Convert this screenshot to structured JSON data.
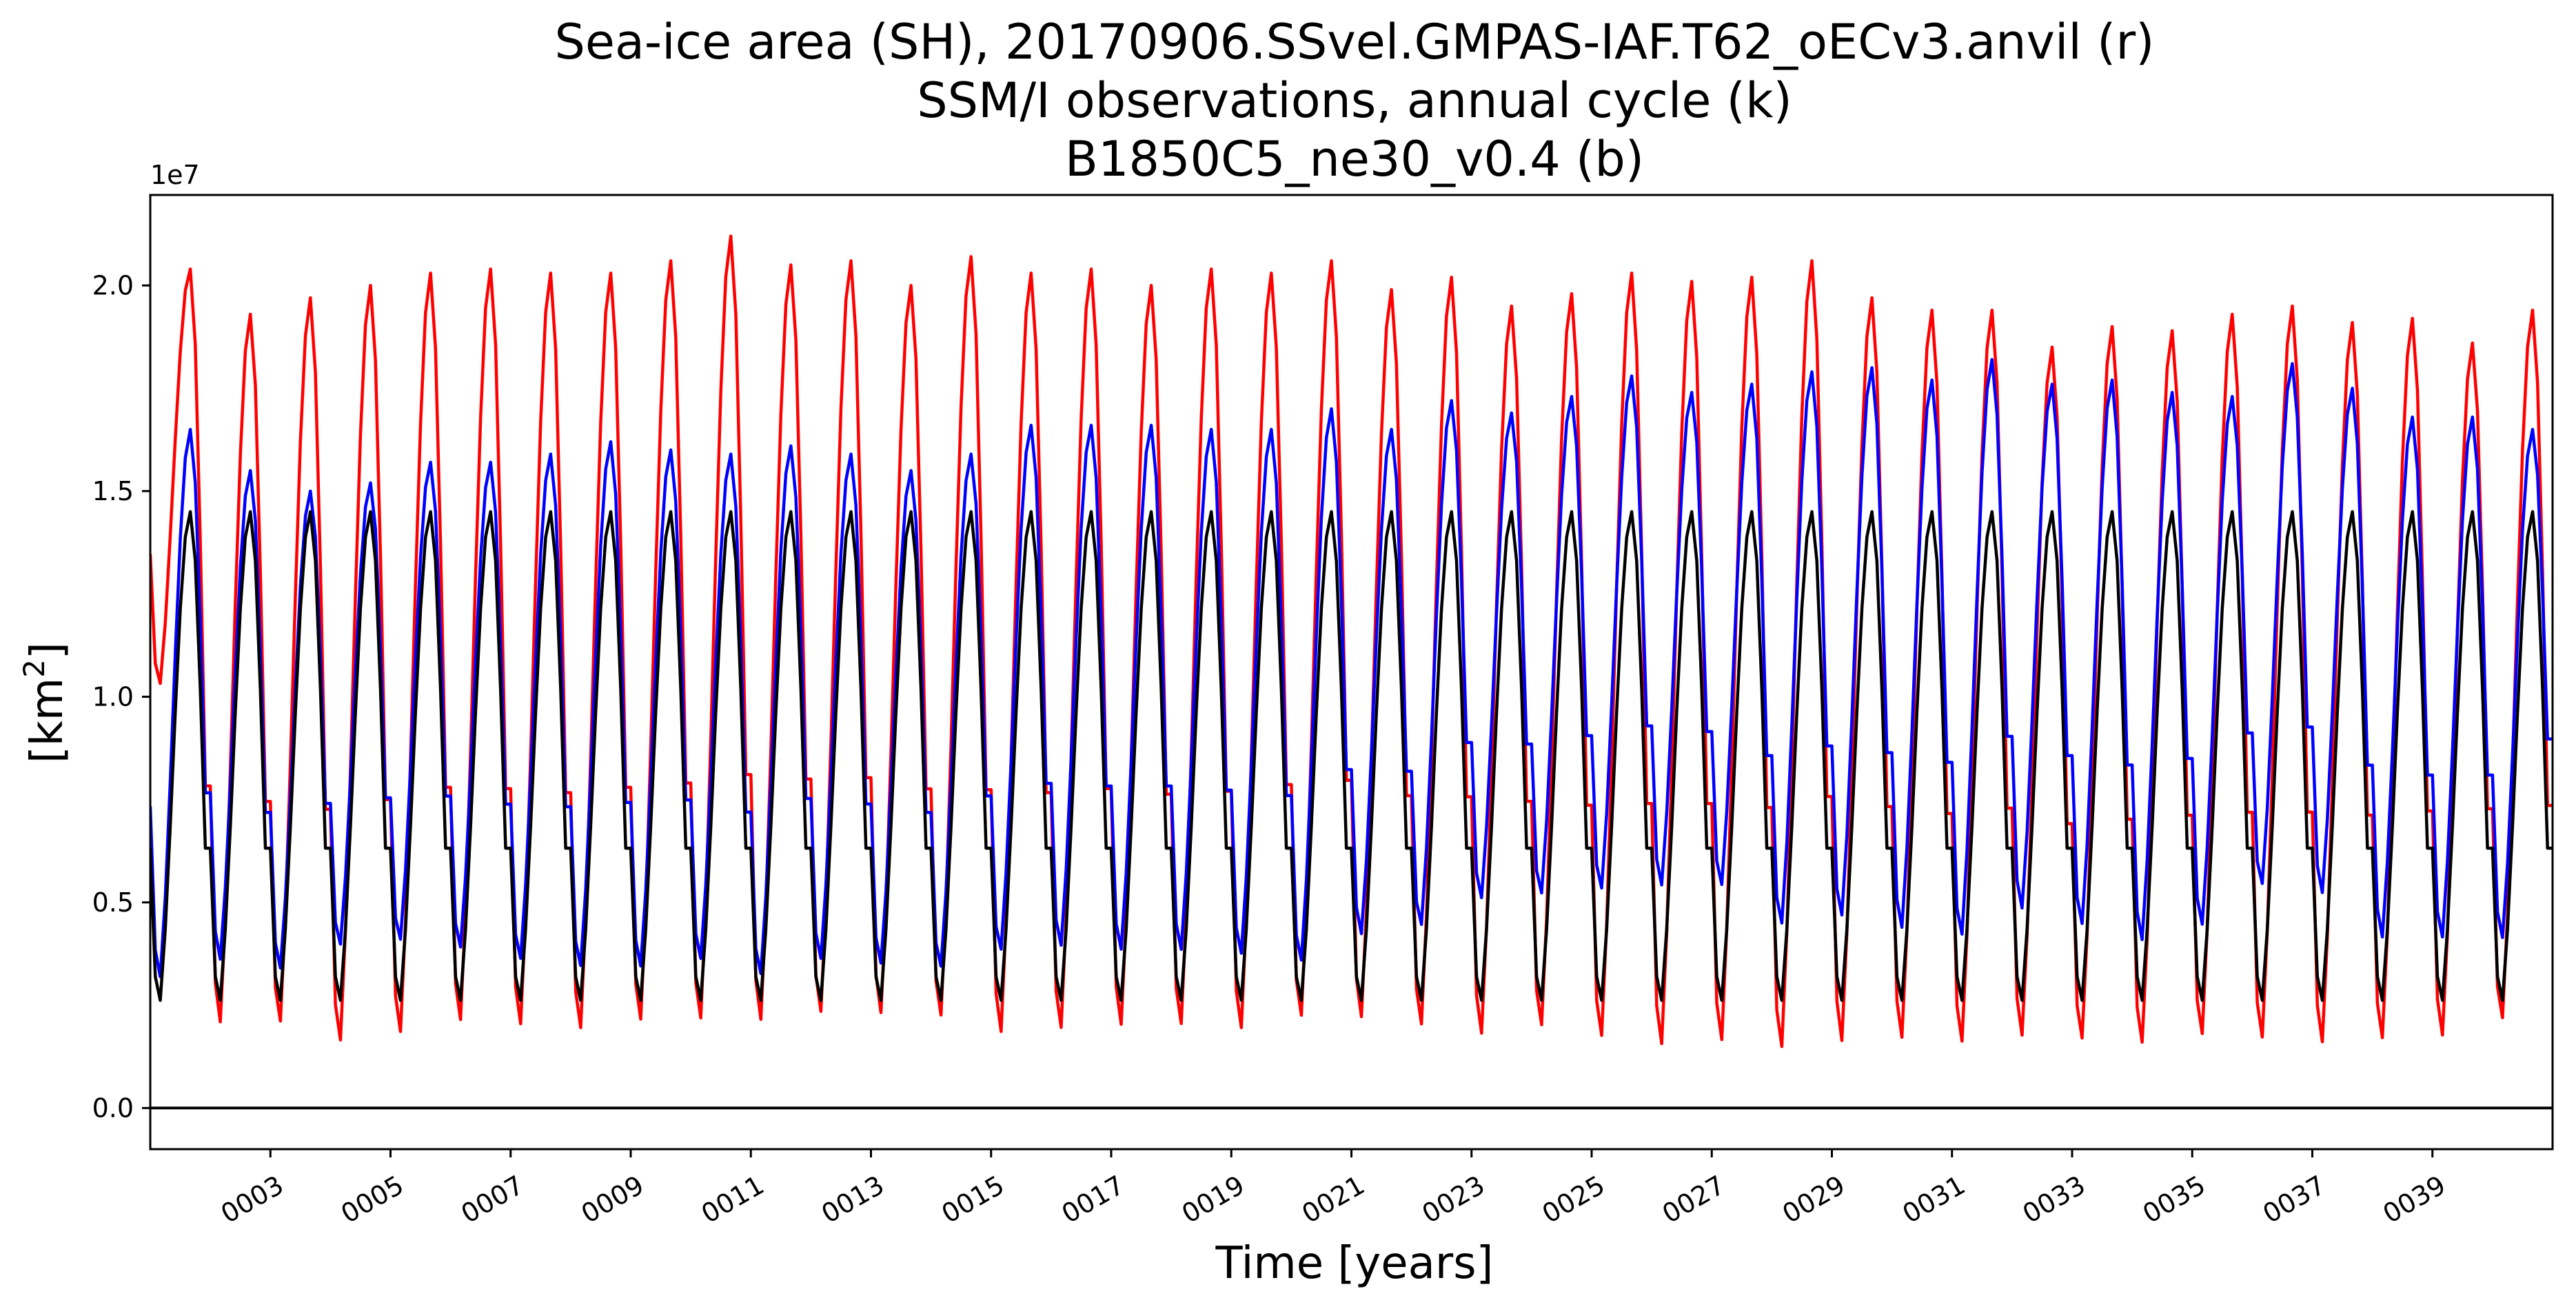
{
  "chart_data": {
    "type": "line",
    "title_lines": [
      "Sea-ice area (SH), 20170906.SSvel.GMPAS-IAF.T62_oECv3.anvil (r)",
      "SSM/I observations, annual cycle (k)",
      "B1850C5_ne30_v0.4 (b)"
    ],
    "xlabel": "Time [years]",
    "ylabel_base": "[km",
    "ylabel_sup": "2",
    "ylabel_end": "]",
    "y_offset_label": "1e7",
    "y_scale": 10000000,
    "xlim": [
      1.0,
      41.0
    ],
    "ylim": [
      -0.1,
      2.22
    ],
    "x_ticks": [
      3,
      5,
      7,
      9,
      11,
      13,
      15,
      17,
      19,
      21,
      23,
      25,
      27,
      29,
      31,
      33,
      35,
      37,
      39
    ],
    "x_tick_labels": [
      "0003",
      "0005",
      "0007",
      "0009",
      "0011",
      "0013",
      "0015",
      "0017",
      "0019",
      "0021",
      "0023",
      "0025",
      "0027",
      "0029",
      "0031",
      "0033",
      "0035",
      "0037",
      "0039"
    ],
    "y_ticks": [
      0.0,
      0.5,
      1.0,
      1.5,
      2.0
    ],
    "y_tick_labels": [
      "0.0",
      "0.5",
      "1.0",
      "1.5",
      "2.0"
    ],
    "zero_line": true,
    "grid": false,
    "series": [
      {
        "color": "#ff0000",
        "minima": [
          0.98,
          0.12,
          0.12,
          0.07,
          0.09,
          0.12,
          0.11,
          0.1,
          0.12,
          0.12,
          0.12,
          0.14,
          0.14,
          0.13,
          0.09,
          0.1,
          0.11,
          0.11,
          0.1,
          0.13,
          0.13,
          0.11,
          0.09,
          0.11,
          0.08,
          0.06,
          0.07,
          0.05,
          0.07,
          0.08,
          0.07,
          0.09,
          0.08,
          0.07,
          0.09,
          0.08,
          0.07,
          0.08,
          0.09,
          0.13,
          0.1
        ],
        "maxima": [
          2.04,
          1.93,
          1.97,
          2.0,
          2.03,
          2.04,
          2.03,
          2.03,
          2.06,
          2.12,
          2.05,
          2.06,
          2.0,
          2.07,
          2.03,
          2.04,
          2.0,
          2.04,
          2.03,
          2.06,
          1.99,
          2.02,
          1.95,
          1.98,
          2.03,
          2.01,
          2.02,
          2.06,
          1.97,
          1.94,
          1.94,
          1.85,
          1.9,
          1.89,
          1.93,
          1.95,
          1.91,
          1.92,
          1.86,
          1.94
        ]
      },
      {
        "color": "#0000ff",
        "minima": [
          0.25,
          0.3,
          0.28,
          0.34,
          0.35,
          0.33,
          0.3,
          0.28,
          0.28,
          0.3,
          0.26,
          0.3,
          0.29,
          0.28,
          0.32,
          0.33,
          0.32,
          0.32,
          0.31,
          0.29,
          0.36,
          0.38,
          0.45,
          0.46,
          0.47,
          0.48,
          0.48,
          0.38,
          0.4,
          0.37,
          0.35,
          0.42,
          0.38,
          0.34,
          0.38,
          0.48,
          0.46,
          0.35,
          0.35,
          0.35,
          0.5
        ],
        "maxima": [
          1.65,
          1.55,
          1.5,
          1.52,
          1.57,
          1.57,
          1.59,
          1.62,
          1.6,
          1.59,
          1.61,
          1.59,
          1.55,
          1.59,
          1.66,
          1.66,
          1.66,
          1.65,
          1.65,
          1.7,
          1.65,
          1.72,
          1.69,
          1.73,
          1.78,
          1.74,
          1.76,
          1.79,
          1.8,
          1.77,
          1.82,
          1.76,
          1.77,
          1.74,
          1.73,
          1.81,
          1.75,
          1.68,
          1.68,
          1.65
        ]
      },
      {
        "color": "#000000",
        "minima": [
          0.2,
          0.2,
          0.2,
          0.2,
          0.2,
          0.2,
          0.2,
          0.2,
          0.2,
          0.2,
          0.2,
          0.2,
          0.2,
          0.2,
          0.2,
          0.2,
          0.2,
          0.2,
          0.2,
          0.2,
          0.2,
          0.2,
          0.2,
          0.2,
          0.2,
          0.2,
          0.2,
          0.2,
          0.2,
          0.2,
          0.2,
          0.2,
          0.2,
          0.2,
          0.2,
          0.2,
          0.2,
          0.2,
          0.2,
          0.2,
          0.2
        ],
        "maxima": [
          1.45,
          1.45,
          1.45,
          1.45,
          1.45,
          1.45,
          1.45,
          1.45,
          1.45,
          1.45,
          1.45,
          1.45,
          1.45,
          1.45,
          1.45,
          1.45,
          1.45,
          1.45,
          1.45,
          1.45,
          1.45,
          1.45,
          1.45,
          1.45,
          1.45,
          1.45,
          1.45,
          1.45,
          1.45,
          1.45,
          1.45,
          1.45,
          1.45,
          1.45,
          1.45,
          1.45,
          1.45,
          1.45,
          1.45,
          1.45
        ]
      }
    ]
  }
}
